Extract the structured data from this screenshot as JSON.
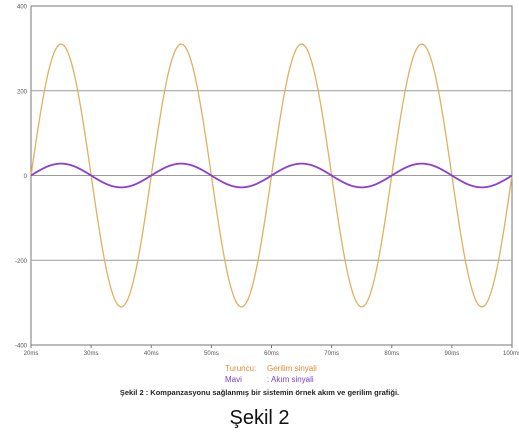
{
  "chart_data": {
    "type": "line",
    "title": "",
    "xlabel": "",
    "ylabel": "",
    "xlim": [
      20,
      100
    ],
    "ylim": [
      -400,
      400
    ],
    "x_ticks": [
      20,
      30,
      40,
      50,
      60,
      70,
      80,
      90,
      100
    ],
    "x_tick_labels": [
      "20ms",
      "30ms",
      "40ms",
      "50ms",
      "60ms",
      "70ms",
      "80ms",
      "90ms",
      "100ms"
    ],
    "y_ticks": [
      -400,
      -200,
      0,
      200,
      400
    ],
    "y_tick_labels": [
      "-400",
      "-200",
      "0",
      "200",
      "400"
    ],
    "grid": true,
    "series": [
      {
        "name": "Gerilim sinyali",
        "color": "#e0b060",
        "waveform": "sine",
        "amplitude": 310,
        "period_ms": 20,
        "phase_deg": 0
      },
      {
        "name": "Akım sinyali",
        "color": "#8a3fd0",
        "waveform": "sine",
        "amplitude": 28,
        "period_ms": 20,
        "phase_deg": 0
      }
    ]
  },
  "legend": {
    "voltage_key": "Turuncu:",
    "voltage_label": "Gerilim sinyali",
    "current_key": "Mavi",
    "current_label": ": Akım sinyali"
  },
  "figure_note": "Şekil 2 : Kompanzasyonu sağlanmış bir sistemin örnek akım ve gerilim grafiği.",
  "caption": "Şekil 2",
  "colors": {
    "voltage": "#e0b060",
    "current": "#8a3fd0",
    "voltage_legend_text": "#e08a30",
    "current_legend_text": "#7b3fc8",
    "grid": "#9a9a9a",
    "plot_border": "#777777"
  }
}
